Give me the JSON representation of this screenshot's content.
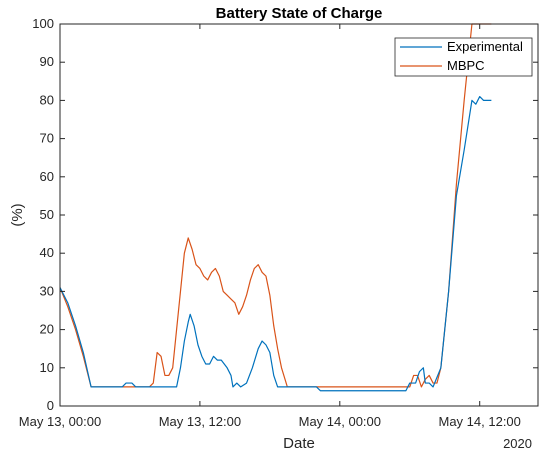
{
  "chart_data": {
    "type": "line",
    "title": "Battery State of Charge",
    "xlabel": "Date",
    "ylabel": "(%)",
    "year_label": "2020",
    "ylim": [
      0,
      100
    ],
    "yticks": [
      0,
      10,
      20,
      30,
      40,
      50,
      60,
      70,
      80,
      90,
      100
    ],
    "xlim": [
      "2020-05-13 00:00",
      "2020-05-14 17:00"
    ],
    "xticks": [
      {
        "value": "2020-05-13 00:00",
        "label": "May 13, 00:00"
      },
      {
        "value": "2020-05-13 12:00",
        "label": "May 13, 12:00"
      },
      {
        "value": "2020-05-14 00:00",
        "label": "May 14, 00:00"
      },
      {
        "value": "2020-05-14 12:00",
        "label": "May 14, 12:00"
      }
    ],
    "grid": false,
    "legend_position": "top-right",
    "series": [
      {
        "name": "Experimental",
        "color": "#0072BD",
        "points": [
          [
            "2020-05-13 00:00",
            31
          ],
          [
            "2020-05-13 00:40",
            27
          ],
          [
            "2020-05-13 01:20",
            21
          ],
          [
            "2020-05-13 02:00",
            14
          ],
          [
            "2020-05-13 02:40",
            5
          ],
          [
            "2020-05-13 04:00",
            5
          ],
          [
            "2020-05-13 05:20",
            5
          ],
          [
            "2020-05-13 05:40",
            6
          ],
          [
            "2020-05-13 06:10",
            6
          ],
          [
            "2020-05-13 06:30",
            5
          ],
          [
            "2020-05-13 09:00",
            5
          ],
          [
            "2020-05-13 10:00",
            5
          ],
          [
            "2020-05-13 10:20",
            10
          ],
          [
            "2020-05-13 10:40",
            17
          ],
          [
            "2020-05-13 11:00",
            22
          ],
          [
            "2020-05-13 11:10",
            24
          ],
          [
            "2020-05-13 11:30",
            21
          ],
          [
            "2020-05-13 11:50",
            16
          ],
          [
            "2020-05-13 12:10",
            13
          ],
          [
            "2020-05-13 12:30",
            11
          ],
          [
            "2020-05-13 12:50",
            11
          ],
          [
            "2020-05-13 13:10",
            13
          ],
          [
            "2020-05-13 13:30",
            12
          ],
          [
            "2020-05-13 13:50",
            12
          ],
          [
            "2020-05-13 14:20",
            10
          ],
          [
            "2020-05-13 14:40",
            8
          ],
          [
            "2020-05-13 14:50",
            5
          ],
          [
            "2020-05-13 15:10",
            6
          ],
          [
            "2020-05-13 15:30",
            5
          ],
          [
            "2020-05-13 16:00",
            6
          ],
          [
            "2020-05-13 16:30",
            10
          ],
          [
            "2020-05-13 17:00",
            15
          ],
          [
            "2020-05-13 17:20",
            17
          ],
          [
            "2020-05-13 17:40",
            16
          ],
          [
            "2020-05-13 18:00",
            14
          ],
          [
            "2020-05-13 18:20",
            8
          ],
          [
            "2020-05-13 18:40",
            5
          ],
          [
            "2020-05-13 21:00",
            5
          ],
          [
            "2020-05-13 22:00",
            5
          ],
          [
            "2020-05-13 22:20",
            4
          ],
          [
            "2020-05-14 04:00",
            4
          ],
          [
            "2020-05-14 05:40",
            4
          ],
          [
            "2020-05-14 06:00",
            6
          ],
          [
            "2020-05-14 06:30",
            6
          ],
          [
            "2020-05-14 06:50",
            9
          ],
          [
            "2020-05-14 07:10",
            10
          ],
          [
            "2020-05-14 07:20",
            6
          ],
          [
            "2020-05-14 07:40",
            6
          ],
          [
            "2020-05-14 08:00",
            5
          ],
          [
            "2020-05-14 08:40",
            10
          ],
          [
            "2020-05-14 09:20",
            30
          ],
          [
            "2020-05-14 10:00",
            55
          ],
          [
            "2020-05-14 10:40",
            67
          ],
          [
            "2020-05-14 11:20",
            80
          ],
          [
            "2020-05-14 11:40",
            79
          ],
          [
            "2020-05-14 12:00",
            81
          ],
          [
            "2020-05-14 12:20",
            80
          ],
          [
            "2020-05-14 13:00",
            80
          ]
        ]
      },
      {
        "name": "MBPC",
        "color": "#D95319",
        "points": [
          [
            "2020-05-13 00:00",
            31
          ],
          [
            "2020-05-13 00:40",
            26
          ],
          [
            "2020-05-13 01:20",
            20
          ],
          [
            "2020-05-13 02:00",
            13
          ],
          [
            "2020-05-13 02:40",
            5
          ],
          [
            "2020-05-13 04:00",
            5
          ],
          [
            "2020-05-13 06:00",
            5
          ],
          [
            "2020-05-13 07:40",
            5
          ],
          [
            "2020-05-13 08:00",
            6
          ],
          [
            "2020-05-13 08:20",
            14
          ],
          [
            "2020-05-13 08:40",
            13
          ],
          [
            "2020-05-13 09:00",
            8
          ],
          [
            "2020-05-13 09:20",
            8
          ],
          [
            "2020-05-13 09:40",
            10
          ],
          [
            "2020-05-13 10:00",
            20
          ],
          [
            "2020-05-13 10:20",
            30
          ],
          [
            "2020-05-13 10:40",
            40
          ],
          [
            "2020-05-13 11:00",
            44
          ],
          [
            "2020-05-13 11:20",
            41
          ],
          [
            "2020-05-13 11:40",
            37
          ],
          [
            "2020-05-13 12:00",
            36
          ],
          [
            "2020-05-13 12:20",
            34
          ],
          [
            "2020-05-13 12:40",
            33
          ],
          [
            "2020-05-13 13:00",
            35
          ],
          [
            "2020-05-13 13:20",
            36
          ],
          [
            "2020-05-13 13:40",
            34
          ],
          [
            "2020-05-13 14:00",
            30
          ],
          [
            "2020-05-13 14:20",
            29
          ],
          [
            "2020-05-13 14:40",
            28
          ],
          [
            "2020-05-13 15:00",
            27
          ],
          [
            "2020-05-13 15:20",
            24
          ],
          [
            "2020-05-13 15:40",
            26
          ],
          [
            "2020-05-13 16:00",
            29
          ],
          [
            "2020-05-13 16:20",
            33
          ],
          [
            "2020-05-13 16:40",
            36
          ],
          [
            "2020-05-13 17:00",
            37
          ],
          [
            "2020-05-13 17:20",
            35
          ],
          [
            "2020-05-13 17:40",
            34
          ],
          [
            "2020-05-13 18:00",
            29
          ],
          [
            "2020-05-13 18:20",
            21
          ],
          [
            "2020-05-13 18:40",
            15
          ],
          [
            "2020-05-13 19:00",
            10
          ],
          [
            "2020-05-13 19:30",
            5
          ],
          [
            "2020-05-13 22:00",
            5
          ],
          [
            "2020-05-14 04:00",
            5
          ],
          [
            "2020-05-14 06:00",
            5
          ],
          [
            "2020-05-14 06:20",
            8
          ],
          [
            "2020-05-14 06:40",
            8
          ],
          [
            "2020-05-14 07:00",
            5
          ],
          [
            "2020-05-14 07:20",
            7
          ],
          [
            "2020-05-14 07:40",
            8
          ],
          [
            "2020-05-14 08:00",
            6
          ],
          [
            "2020-05-14 08:20",
            6
          ],
          [
            "2020-05-14 08:40",
            10
          ],
          [
            "2020-05-14 09:20",
            30
          ],
          [
            "2020-05-14 10:00",
            58
          ],
          [
            "2020-05-14 10:40",
            80
          ],
          [
            "2020-05-14 11:20",
            100
          ],
          [
            "2020-05-14 13:00",
            100
          ]
        ]
      }
    ]
  }
}
